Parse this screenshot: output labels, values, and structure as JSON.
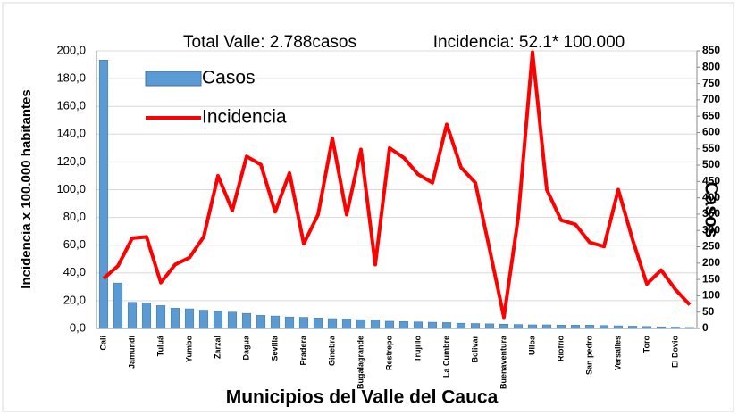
{
  "chart_data": {
    "type": "bar_line",
    "annotations": [
      "Total Valle: 2.788casos",
      "Incidencia: 52.1* 100.000"
    ],
    "x_label": "Municipios del Valle del Cauca",
    "y_label": "Incidencia  x 100.000 habitantes",
    "y2_label": "Casos",
    "categories": [
      "Cali",
      null,
      "Jamundí",
      null,
      "Tuluá",
      null,
      "Yumbo",
      null,
      "Zarzal",
      null,
      "Dagua",
      null,
      "Sevilla",
      null,
      "Pradera",
      null,
      "Ginebra",
      null,
      "Bugalagrande",
      null,
      "Restrepo",
      null,
      "Trujillo",
      null,
      "La Cumbre",
      null,
      "Bolivar",
      null,
      "Buenaventura",
      null,
      "Ulloa",
      null,
      "Riofrio",
      null,
      "San pedro",
      null,
      "Versalles",
      null,
      "Toro",
      null,
      "El Dovio",
      null
    ],
    "series": [
      {
        "name": "Casos",
        "type": "bar",
        "axis": "y2",
        "color": "#5b9bd5",
        "values": [
          822,
          139,
          80,
          78,
          70,
          62,
          60,
          56,
          52,
          50,
          46,
          40,
          38,
          35,
          34,
          32,
          30,
          29,
          27,
          26,
          22,
          21,
          20,
          19,
          18,
          16,
          15,
          14,
          13,
          12,
          11,
          11,
          10,
          10,
          10,
          9,
          8,
          7,
          6,
          5,
          4,
          3
        ]
      },
      {
        "name": "Incidencia",
        "type": "line",
        "axis": "y",
        "color": "#ff0000",
        "values": [
          36,
          45,
          65,
          66,
          33,
          46,
          51,
          66,
          110,
          85,
          124,
          118,
          84,
          112,
          61,
          82,
          137,
          82,
          129,
          46,
          130,
          123,
          111,
          105,
          147,
          116,
          105,
          57,
          8,
          80,
          199,
          100,
          78,
          75,
          62,
          59,
          100,
          64,
          32,
          42,
          28,
          17
        ]
      }
    ],
    "ylim": [
      0,
      200
    ],
    "yticks": [
      {
        "value": 0,
        "label": "0,0"
      },
      {
        "value": 20,
        "label": "20,0"
      },
      {
        "value": 40,
        "label": "40,0"
      },
      {
        "value": 60,
        "label": "60,0"
      },
      {
        "value": 80,
        "label": "80,0"
      },
      {
        "value": 100,
        "label": "100,0"
      },
      {
        "value": 120,
        "label": "120,0"
      },
      {
        "value": 140,
        "label": "140,0"
      },
      {
        "value": 160,
        "label": "160,0"
      },
      {
        "value": 180,
        "label": "180,0"
      },
      {
        "value": 200,
        "label": "200,0"
      }
    ],
    "y2lim": [
      0,
      850
    ],
    "y2ticks": [
      0,
      50,
      100,
      150,
      200,
      250,
      300,
      350,
      400,
      450,
      500,
      550,
      600,
      650,
      700,
      750,
      800,
      850
    ],
    "grid": true
  }
}
